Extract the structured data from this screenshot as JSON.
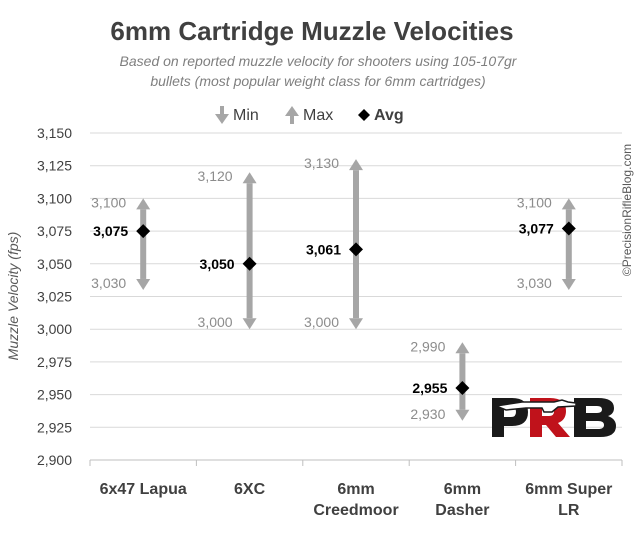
{
  "chart_data": {
    "type": "range",
    "title": "6mm Cartridge Muzzle Velocities",
    "subtitle_lines": [
      "Based on reported muzzle velocity for shooters using 105-107gr",
      "bullets (most popular weight class for 6mm cartridges)"
    ],
    "ylabel": "Muzzle Velocity (fps)",
    "ylim": [
      2900,
      3150
    ],
    "ytick_step": 25,
    "yticks": [
      "2,900",
      "2,925",
      "2,950",
      "2,975",
      "3,000",
      "3,025",
      "3,050",
      "3,075",
      "3,100",
      "3,125",
      "3,150"
    ],
    "grid": "horizontal",
    "categories": [
      [
        "6x47 Lapua"
      ],
      [
        "6XC"
      ],
      [
        "6mm",
        "Creedmoor"
      ],
      [
        "6mm",
        "Dasher"
      ],
      [
        "6mm Super",
        "LR"
      ]
    ],
    "series": [
      {
        "name": "Min",
        "values": [
          3030,
          3000,
          3000,
          2930,
          3030
        ],
        "labels": [
          "3,030",
          "3,000",
          "3,000",
          "2,930",
          "3,030"
        ]
      },
      {
        "name": "Max",
        "values": [
          3100,
          3120,
          3130,
          2990,
          3100
        ],
        "labels": [
          "3,100",
          "3,120",
          "3,130",
          "2,990",
          "3,100"
        ]
      },
      {
        "name": "Avg",
        "values": [
          3075,
          3050,
          3061,
          2955,
          3077
        ],
        "labels": [
          "3,075",
          "3,050",
          "3,061",
          "2,955",
          "3,077"
        ]
      }
    ],
    "legend": {
      "placement": "top-center",
      "entries": [
        "Min",
        "Max",
        "Avg"
      ]
    },
    "colors": {
      "range": "#a6a6a6",
      "avg": "#000000",
      "grid": "#d9d9d9",
      "logo_red": "#c0121b",
      "logo_black": "#1a1a1a"
    }
  },
  "watermark": "©PrecisionRifleBlog.com",
  "logo": "PRB"
}
